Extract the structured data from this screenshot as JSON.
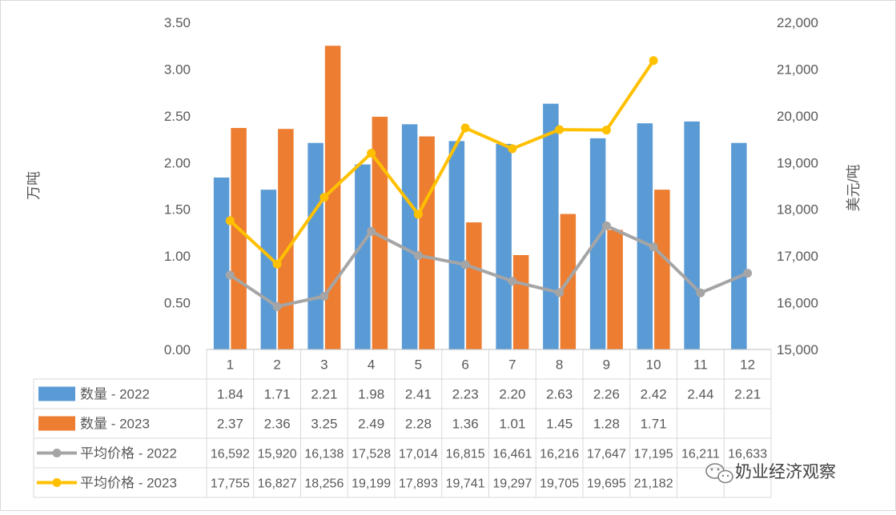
{
  "chart_data": {
    "type": "bar",
    "categories": [
      "1",
      "2",
      "3",
      "4",
      "5",
      "6",
      "7",
      "8",
      "9",
      "10",
      "11",
      "12"
    ],
    "y_left": {
      "label": "万吨",
      "min": 0,
      "max": 3.5,
      "ticks": [
        "0.00",
        "0.50",
        "1.00",
        "1.50",
        "2.00",
        "2.50",
        "3.00",
        "3.50"
      ]
    },
    "y_right": {
      "label": "美元/吨",
      "min": 15000,
      "max": 22000,
      "ticks": [
        "15,000",
        "16,000",
        "17,000",
        "18,000",
        "19,000",
        "20,000",
        "21,000",
        "22,000"
      ]
    },
    "series": [
      {
        "name": "数量 - 2022",
        "kind": "bar",
        "axis": "left",
        "color": "#5B9BD5",
        "values": [
          1.84,
          1.71,
          2.21,
          1.98,
          2.41,
          2.23,
          2.2,
          2.63,
          2.26,
          2.42,
          2.44,
          2.21
        ],
        "labels": [
          "1.84",
          "1.71",
          "2.21",
          "1.98",
          "2.41",
          "2.23",
          "2.20",
          "2.63",
          "2.26",
          "2.42",
          "2.44",
          "2.21"
        ]
      },
      {
        "name": "数量 - 2023",
        "kind": "bar",
        "axis": "left",
        "color": "#ED7D31",
        "values": [
          2.37,
          2.36,
          3.25,
          2.49,
          2.28,
          1.36,
          1.01,
          1.45,
          1.28,
          1.71,
          null,
          null
        ],
        "labels": [
          "2.37",
          "2.36",
          "3.25",
          "2.49",
          "2.28",
          "1.36",
          "1.01",
          "1.45",
          "1.28",
          "1.71",
          "",
          ""
        ]
      },
      {
        "name": "平均价格 - 2022",
        "kind": "line",
        "axis": "right",
        "color": "#A5A5A5",
        "values": [
          16592,
          15920,
          16138,
          17528,
          17014,
          16815,
          16461,
          16216,
          17647,
          17195,
          16211,
          16633
        ],
        "labels": [
          "16,592",
          "15,920",
          "16,138",
          "17,528",
          "17,014",
          "16,815",
          "16,461",
          "16,216",
          "17,647",
          "17,195",
          "16,211",
          "16,633"
        ]
      },
      {
        "name": "平均价格 - 2023",
        "kind": "line",
        "axis": "right",
        "color": "#FFC000",
        "values": [
          17755,
          16827,
          18256,
          19199,
          17893,
          19741,
          19297,
          19705,
          19695,
          21182,
          null,
          null
        ],
        "labels": [
          "17,755",
          "16,827",
          "18,256",
          "19,199",
          "17,893",
          "19,741",
          "19,297",
          "19,705",
          "19,695",
          "21,182",
          "",
          ""
        ]
      }
    ],
    "grid": false,
    "legend": "data-table"
  },
  "watermark": {
    "text": "奶业经济观察"
  },
  "colors": {
    "axis": "#BFBFBF",
    "text": "#595959",
    "table_border": "#D9D9D9"
  }
}
